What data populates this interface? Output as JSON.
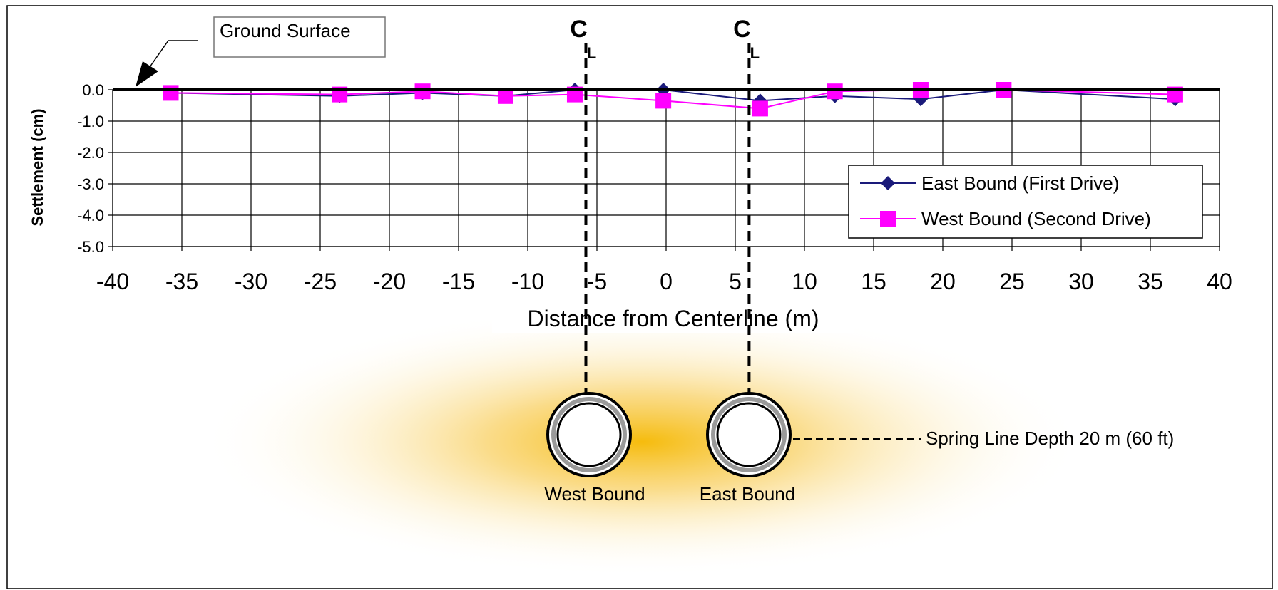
{
  "annotations": {
    "ground_surface": "Ground Surface",
    "centerline_symbol": "C",
    "centerline_sub": "L",
    "spring_line": "Spring Line Depth 20 m (60 ft)",
    "tunnel_west": "West Bound",
    "tunnel_east": "East Bound"
  },
  "colors": {
    "east_series": "#1a1a7a",
    "west_series": "#ff00ff",
    "glow": "#f5b800",
    "grid": "#000000"
  },
  "chart_data": {
    "type": "line",
    "title": "",
    "xlabel": "Distance from Centerline (m)",
    "ylabel": "Settlement (cm)",
    "xlim": [
      -40,
      40
    ],
    "ylim": [
      -5.0,
      0.0
    ],
    "xticks": [
      -40,
      -35,
      -30,
      -25,
      -20,
      -15,
      -10,
      -5,
      0,
      5,
      10,
      15,
      20,
      25,
      30,
      35,
      40
    ],
    "xtick_labels": [
      "-40",
      "-35",
      "-30",
      "-25",
      "-20",
      "-15",
      "-10",
      "-5",
      "0",
      "5",
      "10",
      "15",
      "20",
      "25",
      "30",
      "35",
      "40"
    ],
    "yticks": [
      0.0,
      -1.0,
      -2.0,
      -3.0,
      -4.0,
      -5.0
    ],
    "ytick_labels": [
      "0.0",
      "-1.0",
      "-2.0",
      "-3.0",
      "-4.0",
      "-5.0"
    ],
    "grid": true,
    "legend_position": "right",
    "centerlines_x": [
      -5.8,
      6.0
    ],
    "series": [
      {
        "name": "East Bound (First Drive)",
        "marker": "diamond",
        "x": [
          -35.8,
          -23.6,
          -17.6,
          -11.6,
          -6.6,
          -0.2,
          6.8,
          12.2,
          18.4,
          24.4,
          36.8
        ],
        "y": [
          -0.1,
          -0.2,
          -0.1,
          -0.2,
          0.0,
          0.0,
          -0.35,
          -0.2,
          -0.3,
          0.0,
          -0.3
        ]
      },
      {
        "name": "West Bound (Second Drive)",
        "marker": "square",
        "x": [
          -35.8,
          -23.6,
          -17.6,
          -11.6,
          -6.6,
          -0.2,
          6.8,
          12.2,
          18.4,
          24.4,
          36.8
        ],
        "y": [
          -0.1,
          -0.15,
          -0.05,
          -0.2,
          -0.15,
          -0.35,
          -0.6,
          -0.05,
          0.0,
          0.0,
          -0.15
        ]
      }
    ]
  }
}
